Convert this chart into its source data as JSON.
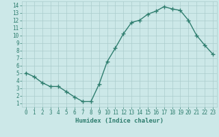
{
  "x": [
    0,
    1,
    2,
    3,
    4,
    5,
    6,
    7,
    8,
    9,
    10,
    11,
    12,
    13,
    14,
    15,
    16,
    17,
    18,
    19,
    20,
    21,
    22,
    23
  ],
  "y": [
    5,
    4.5,
    3.7,
    3.2,
    3.2,
    2.5,
    1.8,
    1.2,
    1.2,
    3.5,
    6.5,
    8.3,
    10.2,
    11.7,
    12.0,
    12.8,
    13.2,
    13.8,
    13.5,
    13.3,
    12.0,
    10.0,
    8.7,
    7.5
  ],
  "line_color": "#2e7d6e",
  "marker": "+",
  "markersize": 4,
  "linewidth": 1.0,
  "bg_color": "#cce8e8",
  "grid_color": "#aacccc",
  "xlabel": "Humidex (Indice chaleur)",
  "xlim": [
    -0.5,
    23.5
  ],
  "ylim": [
    0.5,
    14.5
  ],
  "yticks": [
    1,
    2,
    3,
    4,
    5,
    6,
    7,
    8,
    9,
    10,
    11,
    12,
    13,
    14
  ],
  "xticks": [
    0,
    1,
    2,
    3,
    4,
    5,
    6,
    7,
    8,
    9,
    10,
    11,
    12,
    13,
    14,
    15,
    16,
    17,
    18,
    19,
    20,
    21,
    22,
    23
  ],
  "tick_color": "#2e7d6e",
  "label_color": "#2e7d6e",
  "xlabel_fontsize": 6.5,
  "tick_fontsize": 5.5,
  "fig_bg": "#cce8e8"
}
